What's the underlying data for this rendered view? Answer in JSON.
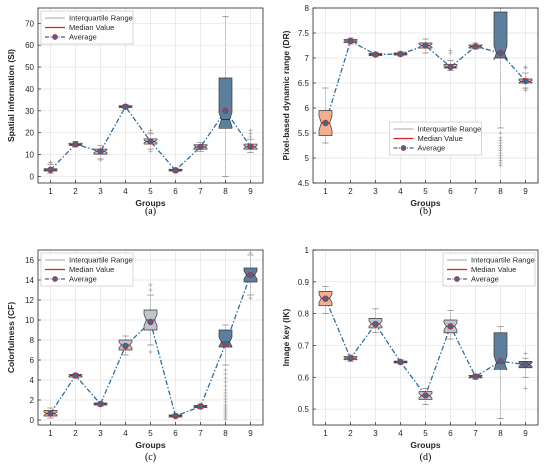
{
  "chart_data": [
    {
      "type": "boxplot",
      "panel_label": "(a)",
      "xlabel": "Groups",
      "ylabel": "Spatial information (SI)",
      "ylim": [
        -3,
        77
      ],
      "yticks": [
        0,
        10,
        20,
        30,
        40,
        50,
        60,
        70
      ],
      "xticks": [
        1,
        2,
        3,
        4,
        5,
        6,
        7,
        8,
        9
      ],
      "legend": {
        "position": "top-left",
        "items": [
          "Interquartile Range",
          "Median Value",
          "Average"
        ]
      },
      "grid": true,
      "colors": {
        "box": "#BFC5CE",
        "box_special": "#5C7F9E",
        "median": "#E02020",
        "average": "#2E6E9E",
        "outlier": "#A0A0A0"
      },
      "groups": [
        {
          "x": 1,
          "q1": 2.5,
          "median": 3.0,
          "q3": 3.5,
          "wlow": 1.5,
          "whigh": 5.5,
          "mean": 3.0,
          "outliers": [
            6.2,
            6.5
          ]
        },
        {
          "x": 2,
          "q1": 14.2,
          "median": 14.6,
          "q3": 15.2,
          "wlow": 13.5,
          "whigh": 16.0,
          "mean": 14.7,
          "outliers": []
        },
        {
          "x": 3,
          "q1": 10.2,
          "median": 11.5,
          "q3": 12.5,
          "wlow": 8.0,
          "whigh": 14.0,
          "mean": 11.4,
          "outliers": [
            7.5
          ]
        },
        {
          "x": 4,
          "q1": 31.5,
          "median": 31.9,
          "q3": 32.3,
          "wlow": 31.0,
          "whigh": 32.8,
          "mean": 31.9,
          "outliers": []
        },
        {
          "x": 5,
          "q1": 14.8,
          "median": 16.0,
          "q3": 17.2,
          "wlow": 12.5,
          "whigh": 19.5,
          "mean": 16.0,
          "outliers": [
            11.5,
            20.0,
            21.0
          ]
        },
        {
          "x": 6,
          "q1": 2.5,
          "median": 2.8,
          "q3": 3.3,
          "wlow": 2.0,
          "whigh": 3.8,
          "mean": 2.8,
          "outliers": []
        },
        {
          "x": 7,
          "q1": 12.5,
          "median": 13.5,
          "q3": 14.5,
          "wlow": 11.5,
          "whigh": 15.5,
          "mean": 13.5,
          "outliers": []
        },
        {
          "x": 8,
          "q1": 22.0,
          "median": 26.0,
          "q3": 45.0,
          "wlow": 0.0,
          "whigh": 73.0,
          "mean": 30.0,
          "outliers": [],
          "special": true
        },
        {
          "x": 9,
          "q1": 12.5,
          "median": 13.5,
          "q3": 14.8,
          "wlow": 11.0,
          "whigh": 17.0,
          "mean": 13.6,
          "outliers": [
            18.0,
            19.5,
            21.0
          ]
        }
      ]
    },
    {
      "type": "boxplot",
      "panel_label": "(b)",
      "xlabel": "Groups",
      "ylabel": "Pixel-based dynamic range (DR)",
      "ylim": [
        4.5,
        8
      ],
      "yticks": [
        4.5,
        5,
        5.5,
        6,
        6.5,
        7,
        7.5,
        8
      ],
      "xticks": [
        1,
        2,
        3,
        4,
        5,
        6,
        7,
        8,
        9
      ],
      "legend": {
        "position": "bottom-center",
        "items": [
          "Interquartile Range",
          "Median Value",
          "Average"
        ]
      },
      "grid": true,
      "colors": {
        "box": "#BFC5CE",
        "box_special": "#5C7F9E",
        "box_first": "#F4AF8E",
        "median": "#E02020",
        "average": "#2E6E9E",
        "outlier": "#A0A0A0"
      },
      "groups": [
        {
          "x": 1,
          "q1": 5.45,
          "median": 5.7,
          "q3": 5.95,
          "wlow": 5.3,
          "whigh": 6.4,
          "mean": 5.7,
          "outliers": [],
          "first": true
        },
        {
          "x": 2,
          "q1": 7.31,
          "median": 7.34,
          "q3": 7.37,
          "wlow": 7.28,
          "whigh": 7.4,
          "mean": 7.34,
          "outliers": []
        },
        {
          "x": 3,
          "q1": 7.05,
          "median": 7.07,
          "q3": 7.09,
          "wlow": 7.03,
          "whigh": 7.11,
          "mean": 7.07,
          "outliers": []
        },
        {
          "x": 4,
          "q1": 7.06,
          "median": 7.08,
          "q3": 7.1,
          "wlow": 7.04,
          "whigh": 7.12,
          "mean": 7.08,
          "outliers": []
        },
        {
          "x": 5,
          "q1": 7.2,
          "median": 7.25,
          "q3": 7.3,
          "wlow": 7.1,
          "whigh": 7.38,
          "mean": 7.25,
          "outliers": []
        },
        {
          "x": 6,
          "q1": 6.8,
          "median": 6.82,
          "q3": 6.87,
          "wlow": 6.75,
          "whigh": 6.95,
          "mean": 6.82,
          "outliers": [
            7.1,
            7.15
          ]
        },
        {
          "x": 7,
          "q1": 7.2,
          "median": 7.23,
          "q3": 7.26,
          "wlow": 7.18,
          "whigh": 7.3,
          "mean": 7.23,
          "outliers": []
        },
        {
          "x": 8,
          "q1": 7.0,
          "median": 7.1,
          "q3": 7.92,
          "wlow": 5.6,
          "whigh": 8.0,
          "mean": 7.1,
          "outliers": [
            4.85,
            4.9,
            4.95,
            5.0,
            5.05,
            5.1,
            5.15,
            5.2,
            5.25,
            5.3,
            5.35,
            5.4,
            5.5
          ],
          "special": true
        },
        {
          "x": 9,
          "q1": 6.5,
          "median": 6.53,
          "q3": 6.58,
          "wlow": 6.4,
          "whigh": 6.7,
          "mean": 6.54,
          "outliers": [
            6.35,
            6.38,
            6.8,
            6.82
          ]
        }
      ]
    },
    {
      "type": "boxplot",
      "panel_label": "(c)",
      "xlabel": "Groups",
      "ylabel": "Colorfulness (CF)",
      "ylim": [
        -0.5,
        17
      ],
      "yticks": [
        0,
        2,
        4,
        6,
        8,
        10,
        12,
        14,
        16
      ],
      "xticks": [
        1,
        2,
        3,
        4,
        5,
        6,
        7,
        8,
        9
      ],
      "legend": {
        "position": "top-left",
        "items": [
          "Interquartile Range",
          "Median Value",
          "Average"
        ]
      },
      "grid": true,
      "colors": {
        "box": "#BFC5CE",
        "box_special": "#5C7F9E",
        "box_first": "#F4AF8E",
        "median": "#E02020",
        "average": "#2E6E9E",
        "outlier": "#A0A0A0"
      },
      "groups": [
        {
          "x": 1,
          "q1": 0.4,
          "median": 0.65,
          "q3": 0.95,
          "wlow": 0.2,
          "whigh": 1.2,
          "mean": 0.65,
          "outliers": [],
          "first": true
        },
        {
          "x": 2,
          "q1": 4.3,
          "median": 4.45,
          "q3": 4.55,
          "wlow": 4.2,
          "whigh": 4.65,
          "mean": 4.45,
          "outliers": []
        },
        {
          "x": 3,
          "q1": 1.5,
          "median": 1.6,
          "q3": 1.7,
          "wlow": 1.4,
          "whigh": 1.8,
          "mean": 1.6,
          "outliers": []
        },
        {
          "x": 4,
          "q1": 7.0,
          "median": 7.5,
          "q3": 8.0,
          "wlow": 6.5,
          "whigh": 8.4,
          "mean": 7.4,
          "outliers": []
        },
        {
          "x": 5,
          "q1": 9.0,
          "median": 10.0,
          "q3": 11.0,
          "wlow": 7.5,
          "whigh": 12.5,
          "mean": 9.8,
          "outliers": [
            6.8,
            13.0,
            13.5
          ]
        },
        {
          "x": 6,
          "q1": 0.3,
          "median": 0.4,
          "q3": 0.5,
          "wlow": 0.25,
          "whigh": 0.6,
          "mean": 0.4,
          "outliers": []
        },
        {
          "x": 7,
          "q1": 1.25,
          "median": 1.35,
          "q3": 1.45,
          "wlow": 1.15,
          "whigh": 1.55,
          "mean": 1.35,
          "outliers": []
        },
        {
          "x": 8,
          "q1": 7.3,
          "median": 7.8,
          "q3": 9.0,
          "wlow": 5.5,
          "whigh": 9.5,
          "mean": 7.6,
          "outliers": [
            0.1,
            0.3,
            0.5,
            0.7,
            0.9,
            1.1,
            1.3,
            1.5,
            1.8,
            2.1,
            2.4,
            2.7,
            3.0,
            3.4,
            3.8,
            4.2,
            4.6,
            5.0
          ],
          "special": true
        },
        {
          "x": 9,
          "q1": 13.8,
          "median": 14.5,
          "q3": 15.2,
          "wlow": 12.5,
          "whigh": 16.5,
          "mean": 14.5,
          "outliers": [
            12.2,
            16.7
          ],
          "special": true
        }
      ]
    },
    {
      "type": "boxplot",
      "panel_label": "(d)",
      "xlabel": "Groups",
      "ylabel": "Image key (IK)",
      "ylim": [
        0.45,
        1.0
      ],
      "yticks": [
        0.5,
        0.6,
        0.7,
        0.8,
        0.9,
        1
      ],
      "xticks": [
        1,
        2,
        3,
        4,
        5,
        6,
        7,
        8,
        9
      ],
      "legend": {
        "position": "top-right",
        "items": [
          "Interquartile Range",
          "Median Value",
          "Average"
        ]
      },
      "grid": true,
      "colors": {
        "box": "#BFC5CE",
        "box_special": "#5C7F9E",
        "box_first": "#F4AF8E",
        "median": "#E02020",
        "average": "#2E6E9E",
        "outlier": "#A0A0A0"
      },
      "groups": [
        {
          "x": 1,
          "q1": 0.825,
          "median": 0.848,
          "q3": 0.87,
          "wlow": 0.8,
          "whigh": 0.885,
          "mean": 0.847,
          "outliers": [],
          "first": true
        },
        {
          "x": 2,
          "q1": 0.655,
          "median": 0.66,
          "q3": 0.665,
          "wlow": 0.65,
          "whigh": 0.67,
          "mean": 0.66,
          "outliers": []
        },
        {
          "x": 3,
          "q1": 0.755,
          "median": 0.768,
          "q3": 0.785,
          "wlow": 0.74,
          "whigh": 0.815,
          "mean": 0.767,
          "outliers": []
        },
        {
          "x": 4,
          "q1": 0.645,
          "median": 0.648,
          "q3": 0.651,
          "wlow": 0.642,
          "whigh": 0.655,
          "mean": 0.648,
          "outliers": []
        },
        {
          "x": 5,
          "q1": 0.53,
          "median": 0.542,
          "q3": 0.555,
          "wlow": 0.515,
          "whigh": 0.565,
          "mean": 0.543,
          "outliers": []
        },
        {
          "x": 6,
          "q1": 0.74,
          "median": 0.76,
          "q3": 0.78,
          "wlow": 0.72,
          "whigh": 0.81,
          "mean": 0.76,
          "outliers": []
        },
        {
          "x": 7,
          "q1": 0.598,
          "median": 0.602,
          "q3": 0.606,
          "wlow": 0.594,
          "whigh": 0.61,
          "mean": 0.602,
          "outliers": []
        },
        {
          "x": 8,
          "q1": 0.625,
          "median": 0.645,
          "q3": 0.74,
          "wlow": 0.47,
          "whigh": 0.76,
          "mean": 0.65,
          "outliers": [],
          "special": true
        },
        {
          "x": 9,
          "q1": 0.63,
          "median": 0.64,
          "q3": 0.65,
          "wlow": 0.6,
          "whigh": 0.66,
          "mean": 0.64,
          "outliers": [
            0.565,
            0.675
          ],
          "special": true
        }
      ]
    }
  ]
}
